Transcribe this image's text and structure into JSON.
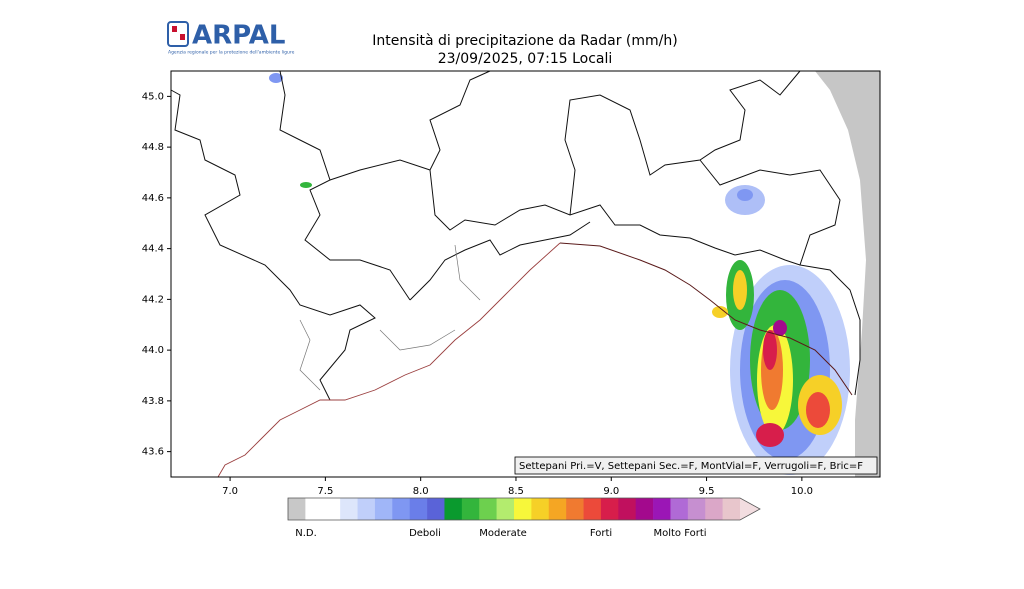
{
  "header": {
    "logo": "ARPAL",
    "logo_caption": "Agenzia regionale per la protezione dell'ambiente ligure",
    "title": "Intensità di precipitazione da Radar (mm/h)",
    "subtitle": "23/09/2025, 07:15 Locali"
  },
  "map": {
    "xlim": [
      6.69,
      10.41
    ],
    "ylim": [
      43.5,
      45.1
    ],
    "xticks": [
      {
        "value": 7,
        "label": "7.0"
      },
      7.5,
      {
        "value": 8,
        "label": "8.0"
      },
      8.5,
      {
        "value": 9,
        "label": "9.0"
      },
      9.5,
      {
        "value": 10,
        "label": "10.0"
      }
    ],
    "yticks": [
      43.6,
      43.8,
      {
        "value": 44,
        "label": "44.0"
      },
      44.2,
      44.4,
      44.6,
      44.8,
      {
        "value": 45,
        "label": "45.0"
      }
    ],
    "annotation": "Settepani Pri.=V, Settepani Sec.=F, MontVial=F, Verrugoli=F, Bric=F"
  },
  "colorbar": {
    "colors": [
      "#c8c8c8",
      "#ffffff",
      "#ffffff",
      "#dde6fb",
      "#c0cffa",
      "#a0b6f8",
      "#7f97f2",
      "#6a7ee9",
      "#5a63d8",
      "#0a9a2e",
      "#33b53c",
      "#6dd04e",
      "#b3ec6e",
      "#f7f73a",
      "#f6d027",
      "#f5a623",
      "#f07a30",
      "#ec4a3a",
      "#d71e4b",
      "#c0105e",
      "#a3098d",
      "#9b16b6",
      "#b06ad6",
      "#c68fd0",
      "#dba7c8",
      "#e8c6cc"
    ],
    "extend_color": "#f2dde0",
    "labels": [
      "N.D.",
      "Deboli",
      "Moderate",
      "Forti",
      "Molto Forti"
    ]
  }
}
